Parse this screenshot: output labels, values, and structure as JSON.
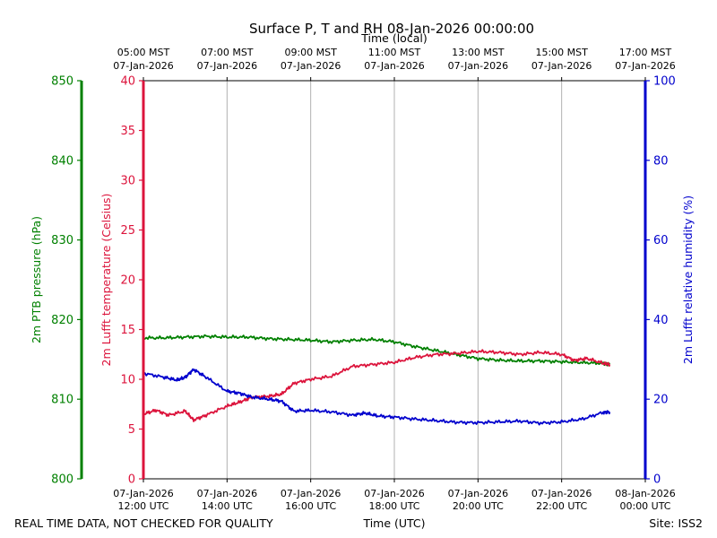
{
  "chart_data": {
    "type": "line",
    "title": "Surface P, T and RH 08-Jan-2026 00:00:00",
    "xlabel": "Time (UTC)",
    "xlabel_top": "Time (local)",
    "x_unit": "hours UTC on 07-Jan-2026",
    "xlim": [
      12,
      24
    ],
    "x_ticks_bottom": [
      {
        "x": 12,
        "date": "07-Jan-2026",
        "time": "12:00 UTC"
      },
      {
        "x": 14,
        "date": "07-Jan-2026",
        "time": "14:00 UTC"
      },
      {
        "x": 16,
        "date": "07-Jan-2026",
        "time": "16:00 UTC"
      },
      {
        "x": 18,
        "date": "07-Jan-2026",
        "time": "18:00 UTC"
      },
      {
        "x": 20,
        "date": "07-Jan-2026",
        "time": "20:00 UTC"
      },
      {
        "x": 22,
        "date": "07-Jan-2026",
        "time": "22:00 UTC"
      },
      {
        "x": 24,
        "date": "08-Jan-2026",
        "time": "00:00 UTC"
      }
    ],
    "x_ticks_top": [
      {
        "x": 12,
        "time": "05:00 MST",
        "date": "07-Jan-2026"
      },
      {
        "x": 14,
        "time": "07:00 MST",
        "date": "07-Jan-2026"
      },
      {
        "x": 16,
        "time": "09:00 MST",
        "date": "07-Jan-2026"
      },
      {
        "x": 18,
        "time": "11:00 MST",
        "date": "07-Jan-2026"
      },
      {
        "x": 20,
        "time": "13:00 MST",
        "date": "07-Jan-2026"
      },
      {
        "x": 22,
        "time": "15:00 MST",
        "date": "07-Jan-2026"
      },
      {
        "x": 24,
        "time": "17:00 MST",
        "date": "07-Jan-2026"
      }
    ],
    "grid": "vertical",
    "axes": {
      "pressure": {
        "label": "2m PTB pressure (hPa)",
        "color": "#008000",
        "ylim": [
          800,
          850
        ],
        "ticks": [
          "800",
          "810",
          "820",
          "830",
          "840",
          "850"
        ]
      },
      "temperature": {
        "label": "2m Lufft temperature (Celsius)",
        "color": "#dc143c",
        "ylim": [
          0,
          40
        ],
        "ticks": [
          "0",
          "5",
          "10",
          "15",
          "20",
          "25",
          "30",
          "35",
          "40"
        ]
      },
      "humidity": {
        "label": "2m Lufft relative humidity (%)",
        "color": "#0000cd",
        "ylim": [
          0,
          100
        ],
        "ticks": [
          "0",
          "20",
          "40",
          "60",
          "80",
          "100"
        ]
      }
    },
    "series": [
      {
        "name": "2m PTB pressure",
        "axis": "pressure",
        "color": "#008000",
        "x": [
          12.0,
          12.5,
          13.0,
          13.5,
          14.0,
          14.5,
          15.0,
          15.5,
          16.0,
          16.5,
          17.0,
          17.5,
          18.0,
          18.5,
          19.0,
          19.5,
          20.0,
          20.5,
          21.0,
          21.5,
          22.0,
          22.5,
          23.0,
          23.15
        ],
        "y": [
          817.7,
          817.7,
          817.8,
          817.9,
          817.8,
          817.8,
          817.6,
          817.5,
          817.4,
          817.2,
          817.4,
          817.5,
          817.2,
          816.6,
          816.1,
          815.6,
          815.1,
          814.9,
          814.8,
          814.8,
          814.7,
          814.6,
          814.5,
          814.4
        ]
      },
      {
        "name": "2m Lufft temperature",
        "axis": "temperature",
        "color": "#dc143c",
        "x": [
          12.0,
          12.3,
          12.6,
          13.0,
          13.2,
          13.5,
          14.0,
          14.3,
          14.6,
          15.0,
          15.3,
          15.6,
          16.0,
          16.5,
          17.0,
          17.5,
          18.0,
          18.5,
          19.0,
          19.5,
          20.0,
          20.5,
          21.0,
          21.5,
          22.0,
          22.3,
          22.6,
          23.0,
          23.15
        ],
        "y": [
          6.5,
          6.9,
          6.4,
          6.8,
          5.9,
          6.4,
          7.3,
          7.7,
          8.2,
          8.3,
          8.5,
          9.6,
          10.0,
          10.3,
          11.3,
          11.5,
          11.7,
          12.2,
          12.5,
          12.6,
          12.8,
          12.7,
          12.5,
          12.7,
          12.5,
          11.9,
          12.1,
          11.6,
          11.5
        ]
      },
      {
        "name": "2m Lufft relative humidity",
        "axis": "humidity",
        "color": "#0000cd",
        "x": [
          12.0,
          12.5,
          12.8,
          13.0,
          13.2,
          13.5,
          14.0,
          14.3,
          14.6,
          15.0,
          15.3,
          15.6,
          16.0,
          16.5,
          17.0,
          17.3,
          17.6,
          18.0,
          18.5,
          19.0,
          19.5,
          20.0,
          20.5,
          21.0,
          21.5,
          22.0,
          22.5,
          23.0,
          23.15
        ],
        "y": [
          26.5,
          25.5,
          24.8,
          25.5,
          27.5,
          25.5,
          22.0,
          21.5,
          20.5,
          20.0,
          19.5,
          17.0,
          17.2,
          16.8,
          16.0,
          16.5,
          15.8,
          15.5,
          15.0,
          14.6,
          14.2,
          14.1,
          14.3,
          14.5,
          14.0,
          14.3,
          15.0,
          16.7,
          16.8
        ]
      }
    ]
  },
  "footer": {
    "left_note": "REAL TIME DATA, NOT CHECKED FOR QUALITY",
    "site": "Site: ISS2"
  }
}
